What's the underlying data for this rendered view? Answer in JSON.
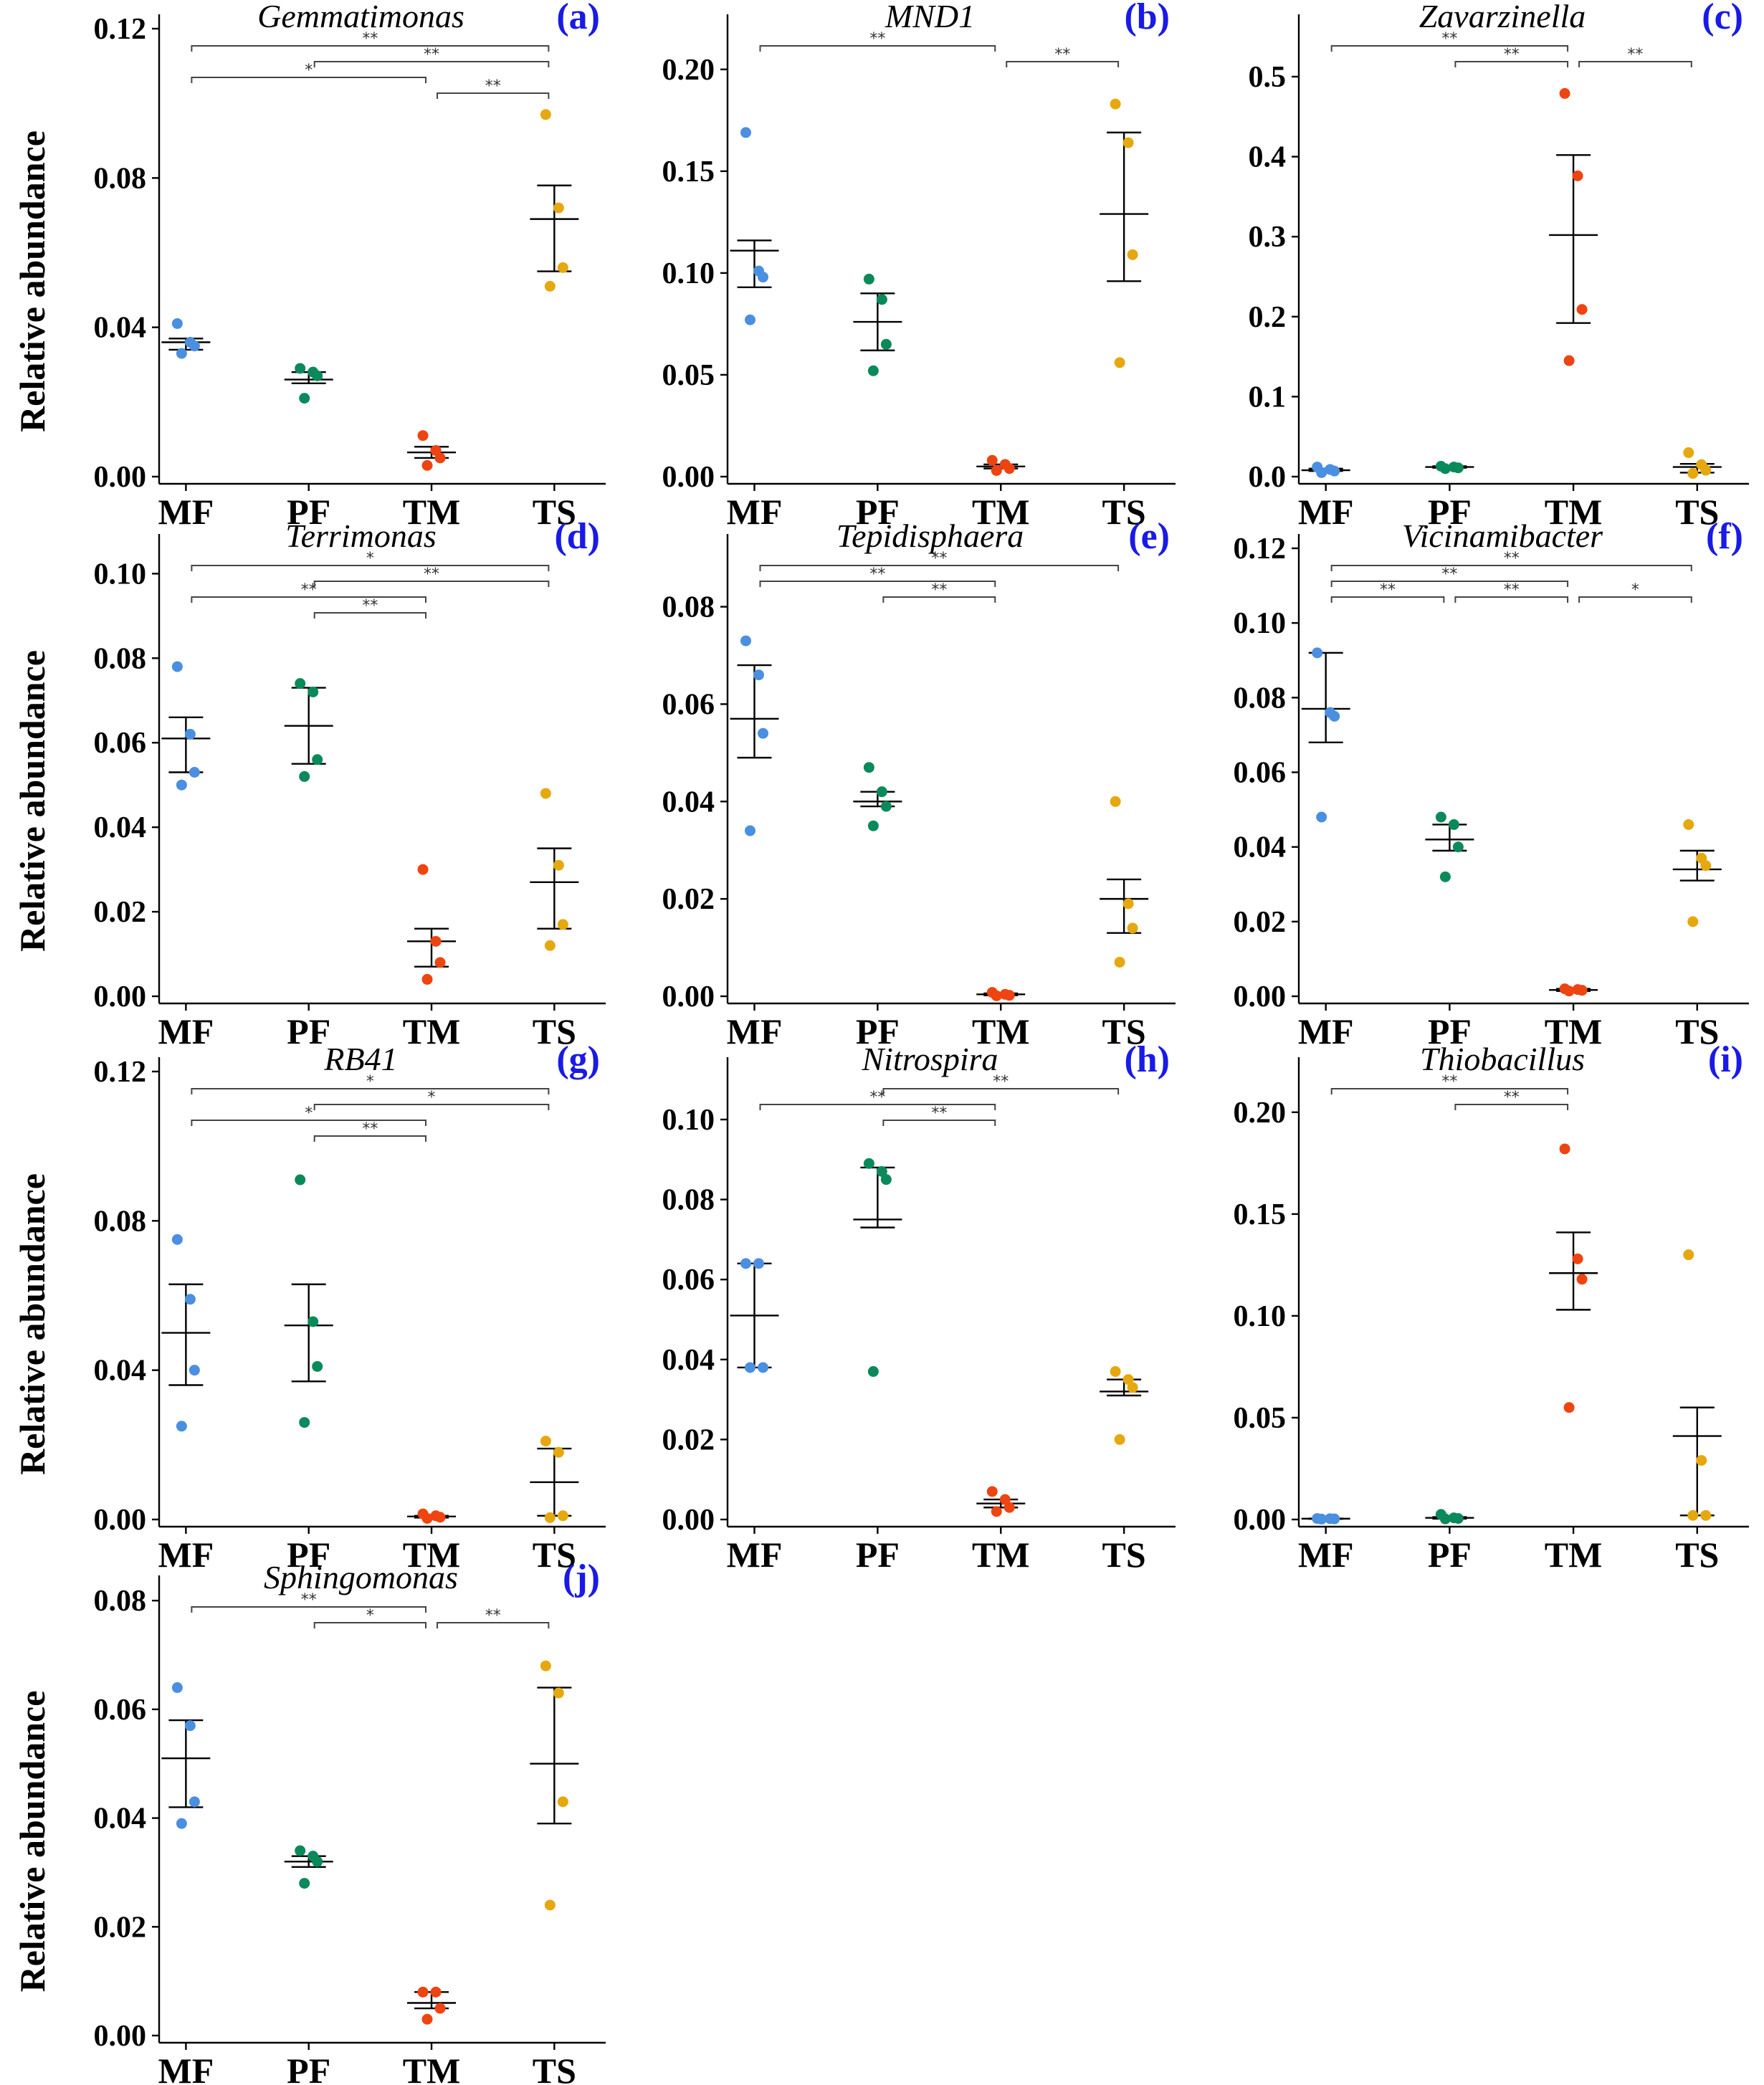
{
  "figure": {
    "ylabel": "Relative abundance"
  },
  "colors": {
    "MF": "#4a8fe0",
    "PF": "#0a8a5a",
    "TM": "#ee4411",
    "TS": "#e6a80f"
  },
  "chart_data": [
    {
      "id": "a",
      "type": "scatter",
      "title": "Gemmatimonas",
      "letter": "(a)",
      "categories": [
        "MF",
        "PF",
        "TM",
        "TS"
      ],
      "ylim": [
        0,
        0.12
      ],
      "yticks": [
        0,
        0.04,
        0.08,
        0.12
      ],
      "ytick_labels": [
        "0.00",
        "0.04",
        "0.08",
        "0.12"
      ],
      "points": {
        "MF": [
          0.041,
          0.036,
          0.035,
          0.033
        ],
        "PF": [
          0.029,
          0.028,
          0.027,
          0.021
        ],
        "TM": [
          0.011,
          0.007,
          0.005,
          0.003
        ],
        "TS": [
          0.097,
          0.072,
          0.056,
          0.051
        ]
      },
      "mean": {
        "MF": 0.036,
        "PF": 0.026,
        "TM": 0.0065,
        "TS": 0.069
      },
      "err_high": {
        "MF": 0.037,
        "PF": 0.028,
        "TM": 0.008,
        "TS": 0.078
      },
      "err_low": {
        "MF": 0.034,
        "PF": 0.025,
        "TM": 0.005,
        "TS": 0.055
      },
      "brackets": [
        {
          "from": "MF",
          "to": "TS",
          "level": 0,
          "label": "**"
        },
        {
          "from": "PF",
          "to": "TS",
          "level": 1,
          "label": "**"
        },
        {
          "from": "MF",
          "to": "TM",
          "level": 2,
          "label": "*"
        },
        {
          "from": "TM",
          "to": "TS",
          "level": 3,
          "label": "**"
        }
      ]
    },
    {
      "id": "b",
      "type": "scatter",
      "title": "MND1",
      "letter": "(b)",
      "categories": [
        "MF",
        "PF",
        "TM",
        "TS"
      ],
      "ylim": [
        0,
        0.22
      ],
      "yticks": [
        0,
        0.05,
        0.1,
        0.15,
        0.2
      ],
      "ytick_labels": [
        "0.00",
        "0.05",
        "0.10",
        "0.15",
        "0.20"
      ],
      "points": {
        "MF": [
          0.169,
          0.101,
          0.098,
          0.077
        ],
        "PF": [
          0.097,
          0.087,
          0.065,
          0.052
        ],
        "TM": [
          0.008,
          0.006,
          0.004,
          0.003
        ],
        "TS": [
          0.183,
          0.164,
          0.109,
          0.056
        ]
      },
      "mean": {
        "MF": 0.111,
        "PF": 0.076,
        "TM": 0.005,
        "TS": 0.129
      },
      "err_high": {
        "MF": 0.116,
        "PF": 0.09,
        "TM": 0.006,
        "TS": 0.169
      },
      "err_low": {
        "MF": 0.093,
        "PF": 0.062,
        "TM": 0.004,
        "TS": 0.096
      },
      "brackets": [
        {
          "from": "MF",
          "to": "TM",
          "level": 0,
          "label": "**"
        },
        {
          "from": "TM",
          "to": "TS",
          "level": 1,
          "label": "**"
        }
      ]
    },
    {
      "id": "c",
      "type": "scatter",
      "title": "Zavarzinella",
      "letter": "(c)",
      "categories": [
        "MF",
        "PF",
        "TM",
        "TS"
      ],
      "ylim": [
        0,
        0.56
      ],
      "yticks": [
        0,
        0.1,
        0.2,
        0.3,
        0.4,
        0.5
      ],
      "ytick_labels": [
        "0.0",
        "0.1",
        "0.2",
        "0.3",
        "0.4",
        "0.5"
      ],
      "points": {
        "MF": [
          0.012,
          0.009,
          0.007,
          0.005
        ],
        "PF": [
          0.013,
          0.012,
          0.011,
          0.01
        ],
        "TM": [
          0.479,
          0.376,
          0.209,
          0.145
        ],
        "TS": [
          0.03,
          0.015,
          0.008,
          0.004
        ]
      },
      "mean": {
        "MF": 0.008,
        "PF": 0.012,
        "TM": 0.302,
        "TS": 0.012
      },
      "err_high": {
        "MF": 0.01,
        "PF": 0.013,
        "TM": 0.402,
        "TS": 0.016
      },
      "err_low": {
        "MF": 0.007,
        "PF": 0.011,
        "TM": 0.192,
        "TS": 0.005
      },
      "brackets": [
        {
          "from": "MF",
          "to": "TM",
          "level": 0,
          "label": "**"
        },
        {
          "from": "PF",
          "to": "TM",
          "level": 1,
          "label": "**"
        },
        {
          "from": "TM",
          "to": "TS",
          "level": 1,
          "label": "**"
        }
      ]
    },
    {
      "id": "d",
      "type": "scatter",
      "title": "Terrimonas",
      "letter": "(d)",
      "categories": [
        "MF",
        "PF",
        "TM",
        "TS"
      ],
      "ylim": [
        0,
        0.106
      ],
      "yticks": [
        0,
        0.02,
        0.04,
        0.06,
        0.08,
        0.1
      ],
      "ytick_labels": [
        "0.00",
        "0.02",
        "0.04",
        "0.06",
        "0.08",
        "0.10"
      ],
      "points": {
        "MF": [
          0.078,
          0.062,
          0.053,
          0.05
        ],
        "PF": [
          0.074,
          0.072,
          0.056,
          0.052
        ],
        "TM": [
          0.03,
          0.013,
          0.008,
          0.004
        ],
        "TS": [
          0.048,
          0.031,
          0.017,
          0.012
        ]
      },
      "mean": {
        "MF": 0.061,
        "PF": 0.064,
        "TM": 0.013,
        "TS": 0.027
      },
      "err_high": {
        "MF": 0.066,
        "PF": 0.073,
        "TM": 0.016,
        "TS": 0.035
      },
      "err_low": {
        "MF": 0.053,
        "PF": 0.055,
        "TM": 0.007,
        "TS": 0.016
      },
      "brackets": [
        {
          "from": "MF",
          "to": "TS",
          "level": 0,
          "label": "*"
        },
        {
          "from": "PF",
          "to": "TS",
          "level": 1,
          "label": "**"
        },
        {
          "from": "MF",
          "to": "TM",
          "level": 2,
          "label": "**"
        },
        {
          "from": "PF",
          "to": "TM",
          "level": 3,
          "label": "**"
        }
      ]
    },
    {
      "id": "e",
      "type": "scatter",
      "title": "Tepidisphaera",
      "letter": "(e)",
      "categories": [
        "MF",
        "PF",
        "TM",
        "TS"
      ],
      "ylim": [
        0,
        0.092
      ],
      "yticks": [
        0,
        0.02,
        0.04,
        0.06,
        0.08
      ],
      "ytick_labels": [
        "0.00",
        "0.02",
        "0.04",
        "0.06",
        "0.08"
      ],
      "points": {
        "MF": [
          0.073,
          0.066,
          0.054,
          0.034
        ],
        "PF": [
          0.047,
          0.042,
          0.039,
          0.035
        ],
        "TM": [
          0.0008,
          0.0004,
          0.0002,
          0.0001
        ],
        "TS": [
          0.04,
          0.019,
          0.014,
          0.007
        ]
      },
      "mean": {
        "MF": 0.057,
        "PF": 0.04,
        "TM": 0.0004,
        "TS": 0.02
      },
      "err_high": {
        "MF": 0.068,
        "PF": 0.042,
        "TM": 0.0006,
        "TS": 0.024
      },
      "err_low": {
        "MF": 0.049,
        "PF": 0.039,
        "TM": 0.0002,
        "TS": 0.013
      },
      "brackets": [
        {
          "from": "MF",
          "to": "TS",
          "level": 0,
          "label": "**"
        },
        {
          "from": "MF",
          "to": "TM",
          "level": 1,
          "label": "**"
        },
        {
          "from": "PF",
          "to": "TM",
          "level": 2,
          "label": "**"
        }
      ]
    },
    {
      "id": "f",
      "type": "scatter",
      "title": "Vicinamibacter",
      "letter": "(f)",
      "categories": [
        "MF",
        "PF",
        "TM",
        "TS"
      ],
      "ylim": [
        0,
        0.12
      ],
      "yticks": [
        0,
        0.02,
        0.04,
        0.06,
        0.08,
        0.1,
        0.12
      ],
      "ytick_labels": [
        "0.00",
        "0.02",
        "0.04",
        "0.06",
        "0.08",
        "0.10",
        "0.12"
      ],
      "points": {
        "MF": [
          0.092,
          0.076,
          0.075,
          0.048
        ],
        "PF": [
          0.048,
          0.046,
          0.04,
          0.032
        ],
        "TM": [
          0.002,
          0.0018,
          0.0016,
          0.0014
        ],
        "TS": [
          0.046,
          0.037,
          0.035,
          0.02
        ]
      },
      "mean": {
        "MF": 0.077,
        "PF": 0.042,
        "TM": 0.0017,
        "TS": 0.034
      },
      "err_high": {
        "MF": 0.092,
        "PF": 0.046,
        "TM": 0.002,
        "TS": 0.039
      },
      "err_low": {
        "MF": 0.068,
        "PF": 0.039,
        "TM": 0.0014,
        "TS": 0.031
      },
      "brackets": [
        {
          "from": "MF",
          "to": "TS",
          "level": 0,
          "label": "**"
        },
        {
          "from": "MF",
          "to": "TM",
          "level": 1,
          "label": "**"
        },
        {
          "from": "MF",
          "to": "PF",
          "level": 2,
          "label": "**"
        },
        {
          "from": "PF",
          "to": "TM",
          "level": 2,
          "label": "**"
        },
        {
          "from": "TM",
          "to": "TS",
          "level": 2,
          "label": "*"
        }
      ]
    },
    {
      "id": "g",
      "type": "scatter",
      "title": "RB41",
      "letter": "(g)",
      "categories": [
        "MF",
        "PF",
        "TM",
        "TS"
      ],
      "ylim": [
        0,
        0.12
      ],
      "yticks": [
        0,
        0.04,
        0.08,
        0.12
      ],
      "ytick_labels": [
        "0.00",
        "0.04",
        "0.08",
        "0.12"
      ],
      "points": {
        "MF": [
          0.075,
          0.059,
          0.04,
          0.025
        ],
        "PF": [
          0.091,
          0.053,
          0.041,
          0.026
        ],
        "TM": [
          0.0015,
          0.001,
          0.0006,
          0.0003
        ],
        "TS": [
          0.021,
          0.018,
          0.001,
          0.0005
        ]
      },
      "mean": {
        "MF": 0.05,
        "PF": 0.052,
        "TM": 0.0008,
        "TS": 0.01
      },
      "err_high": {
        "MF": 0.063,
        "PF": 0.063,
        "TM": 0.001,
        "TS": 0.019
      },
      "err_low": {
        "MF": 0.036,
        "PF": 0.037,
        "TM": 0.0005,
        "TS": 0.001
      },
      "brackets": [
        {
          "from": "MF",
          "to": "TS",
          "level": 0,
          "label": "*"
        },
        {
          "from": "PF",
          "to": "TS",
          "level": 1,
          "label": "*"
        },
        {
          "from": "MF",
          "to": "TM",
          "level": 2,
          "label": "*"
        },
        {
          "from": "PF",
          "to": "TM",
          "level": 3,
          "label": "**"
        }
      ]
    },
    {
      "id": "h",
      "type": "scatter",
      "title": "Nitrospira",
      "letter": "(h)",
      "categories": [
        "MF",
        "PF",
        "TM",
        "TS"
      ],
      "ylim": [
        0,
        0.112
      ],
      "yticks": [
        0,
        0.02,
        0.04,
        0.06,
        0.08,
        0.1
      ],
      "ytick_labels": [
        "0.00",
        "0.02",
        "0.04",
        "0.06",
        "0.08",
        "0.10"
      ],
      "points": {
        "MF": [
          0.064,
          0.064,
          0.038,
          0.038
        ],
        "PF": [
          0.089,
          0.087,
          0.085,
          0.037
        ],
        "TM": [
          0.007,
          0.005,
          0.003,
          0.002
        ],
        "TS": [
          0.037,
          0.035,
          0.033,
          0.02
        ]
      },
      "mean": {
        "MF": 0.051,
        "PF": 0.075,
        "TM": 0.004,
        "TS": 0.032
      },
      "err_high": {
        "MF": 0.064,
        "PF": 0.088,
        "TM": 0.005,
        "TS": 0.035
      },
      "err_low": {
        "MF": 0.038,
        "PF": 0.073,
        "TM": 0.003,
        "TS": 0.031
      },
      "brackets": [
        {
          "from": "PF",
          "to": "TS",
          "level": 0,
          "label": "**"
        },
        {
          "from": "MF",
          "to": "TM",
          "level": 1,
          "label": "**"
        },
        {
          "from": "PF",
          "to": "TM",
          "level": 2,
          "label": "**"
        }
      ]
    },
    {
      "id": "i",
      "type": "scatter",
      "title": "Thiobacillus",
      "letter": "(i)",
      "categories": [
        "MF",
        "PF",
        "TM",
        "TS"
      ],
      "ylim": [
        0,
        0.22
      ],
      "yticks": [
        0,
        0.05,
        0.1,
        0.15,
        0.2
      ],
      "ytick_labels": [
        "0.00",
        "0.05",
        "0.10",
        "0.15",
        "0.20"
      ],
      "points": {
        "MF": [
          0.0005,
          0.0004,
          0.0003,
          0.0002
        ],
        "PF": [
          0.0025,
          0.0008,
          0.0005,
          0.0003
        ],
        "TM": [
          0.182,
          0.128,
          0.118,
          0.055
        ],
        "TS": [
          0.13,
          0.029,
          0.002,
          0.002
        ]
      },
      "mean": {
        "MF": 0.0004,
        "PF": 0.0008,
        "TM": 0.121,
        "TS": 0.041
      },
      "err_high": {
        "MF": 0.0005,
        "PF": 0.0012,
        "TM": 0.141,
        "TS": 0.055
      },
      "err_low": {
        "MF": 0.0003,
        "PF": 0.0004,
        "TM": 0.103,
        "TS": 0.002
      },
      "brackets": [
        {
          "from": "MF",
          "to": "TM",
          "level": 0,
          "label": "**"
        },
        {
          "from": "PF",
          "to": "TM",
          "level": 1,
          "label": "**"
        }
      ]
    },
    {
      "id": "j",
      "type": "scatter",
      "title": "Sphingomonas",
      "letter": "(j)",
      "categories": [
        "MF",
        "PF",
        "TM",
        "TS"
      ],
      "ylim": [
        0,
        0.082
      ],
      "yticks": [
        0,
        0.02,
        0.04,
        0.06,
        0.08
      ],
      "ytick_labels": [
        "0.00",
        "0.02",
        "0.04",
        "0.06",
        "0.08"
      ],
      "points": {
        "MF": [
          0.064,
          0.057,
          0.043,
          0.039
        ],
        "PF": [
          0.034,
          0.033,
          0.032,
          0.028
        ],
        "TM": [
          0.008,
          0.008,
          0.005,
          0.003
        ],
        "TS": [
          0.068,
          0.063,
          0.043,
          0.024
        ]
      },
      "mean": {
        "MF": 0.051,
        "PF": 0.032,
        "TM": 0.006,
        "TS": 0.05
      },
      "err_high": {
        "MF": 0.058,
        "PF": 0.033,
        "TM": 0.008,
        "TS": 0.064
      },
      "err_low": {
        "MF": 0.042,
        "PF": 0.031,
        "TM": 0.005,
        "TS": 0.039
      },
      "brackets": [
        {
          "from": "MF",
          "to": "TM",
          "level": 0,
          "label": "**"
        },
        {
          "from": "PF",
          "to": "TM",
          "level": 1,
          "label": "*"
        },
        {
          "from": "TM",
          "to": "TS",
          "level": 1,
          "label": "**"
        }
      ]
    }
  ]
}
